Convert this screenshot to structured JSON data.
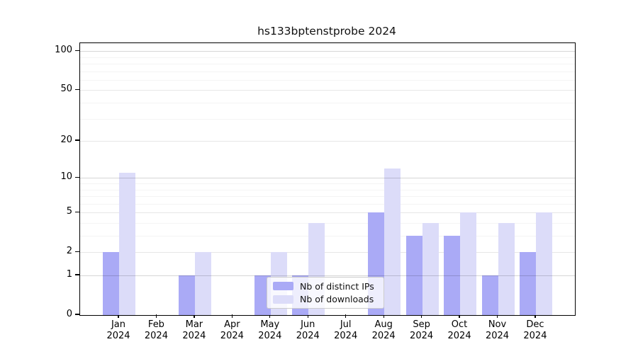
{
  "chart_data": {
    "type": "bar",
    "title": "hs133bptenstprobe 2024",
    "categories": [
      "Jan 2024",
      "Feb 2024",
      "Mar 2024",
      "Apr 2024",
      "May 2024",
      "Jun 2024",
      "Jul 2024",
      "Aug 2024",
      "Sep 2024",
      "Oct 2024",
      "Nov 2024",
      "Dec 2024"
    ],
    "series": [
      {
        "name": "Nb of distinct IPs",
        "color": "#aaaaf6",
        "values": [
          2,
          0,
          1,
          0,
          1,
          1,
          0,
          5,
          3,
          3,
          1,
          2
        ]
      },
      {
        "name": "Nb of downloads",
        "color": "#dcdcf9",
        "values": [
          11,
          0,
          2,
          0,
          2,
          4,
          0,
          12,
          4,
          5,
          4,
          5
        ]
      }
    ],
    "y_ticks": [
      0,
      1,
      2,
      5,
      10,
      20,
      50,
      100
    ],
    "yscale": "log1p",
    "ylim": [
      0,
      115
    ],
    "grid": true,
    "legend_position": "lower center"
  },
  "legend": {
    "items": [
      {
        "label": "Nb of distinct IPs",
        "color": "#aaaaf6"
      },
      {
        "label": "Nb of downloads",
        "color": "#dcdcf9"
      }
    ]
  }
}
